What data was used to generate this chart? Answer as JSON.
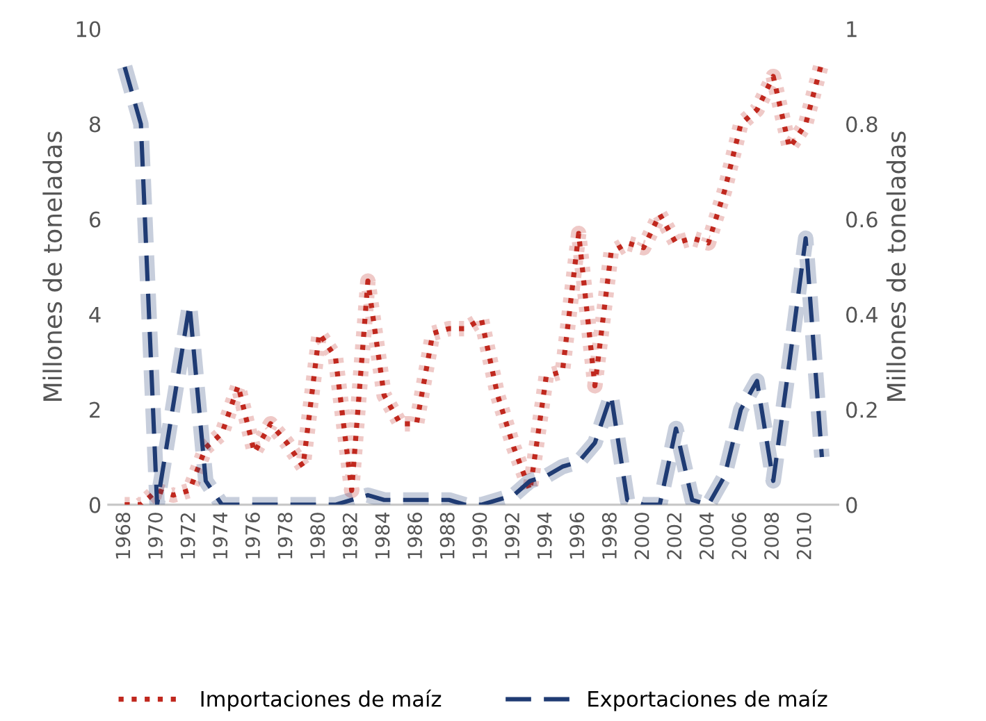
{
  "chart_data": {
    "type": "line",
    "ylabel": "Millones de toneladas",
    "y2label": "Millones de toneladas",
    "categories": [
      "1968",
      null,
      "1970",
      null,
      "1972",
      null,
      "1974",
      null,
      "1976",
      null,
      "1978",
      null,
      "1980",
      null,
      "1982",
      null,
      "1984",
      null,
      "1986",
      null,
      "1988",
      null,
      "1990",
      null,
      "1992",
      null,
      "1994",
      null,
      "1996",
      null,
      "1998",
      null,
      "2000",
      null,
      "2002",
      null,
      "2004",
      null,
      "2006",
      null,
      "2008",
      null,
      "2010",
      null
    ],
    "series": [
      {
        "name": "Importaciones de maíz",
        "color": "#c0281e",
        "line_style": "dotted",
        "values": [
          0,
          0,
          0.3,
          0.2,
          0.3,
          1.2,
          1.5,
          2.5,
          1.1,
          1.7,
          1.3,
          0.8,
          3.6,
          3.1,
          0.3,
          4.7,
          2.3,
          1.7,
          1.7,
          3.6,
          3.7,
          3.7,
          3.9,
          2.3,
          1.2,
          0.3,
          2.7,
          2.8,
          5.7,
          2.5,
          5.3,
          5.5,
          5.4,
          6.1,
          5.5,
          5.6,
          5.5,
          6.6,
          8.0,
          8.3,
          9.0,
          7.5,
          8.0,
          9.3
        ]
      },
      {
        "name": "Exportaciones de maíz",
        "color": "#1f3b73",
        "line_style": "dashed",
        "axis": "y2",
        "values": [
          0.92,
          0.8,
          0,
          0.21,
          0.42,
          0.05,
          0,
          0,
          0,
          0,
          0,
          0,
          0,
          0,
          0.01,
          0.02,
          0.01,
          0.01,
          0.01,
          0.01,
          0.01,
          0,
          0,
          0.01,
          0.02,
          0.05,
          0.06,
          0.08,
          0.09,
          0.13,
          0.23,
          0.01,
          0,
          0,
          0.16,
          0.01,
          0,
          0.06,
          0.2,
          0.26,
          0.05,
          0.3,
          0.56,
          0.1
        ]
      }
    ],
    "ylim": [
      0,
      10
    ],
    "yticks": [
      0,
      2,
      4,
      6,
      8,
      10
    ],
    "y2lim": [
      0,
      1
    ],
    "y2ticks": [
      0,
      0.2,
      0.4,
      0.6,
      0.8,
      1
    ],
    "legend": "bottom",
    "grid": false
  }
}
